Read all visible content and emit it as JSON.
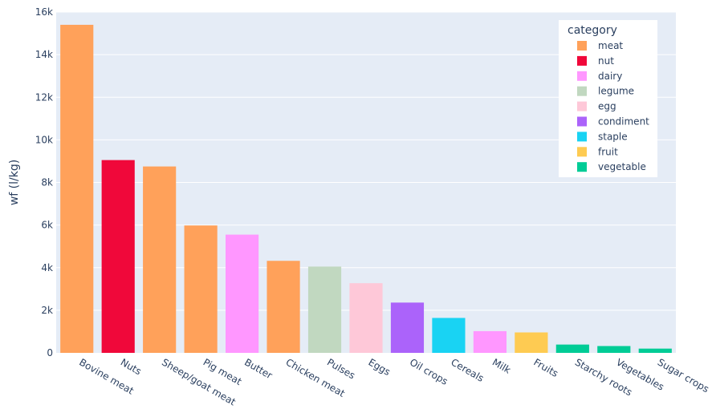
{
  "chart_data": {
    "type": "bar",
    "title": "",
    "xlabel": "",
    "ylabel": "wf (l/kg)",
    "ylim": [
      0,
      16000
    ],
    "ytick_values": [
      0,
      2000,
      4000,
      6000,
      8000,
      10000,
      12000,
      14000,
      16000
    ],
    "ytick_labels": [
      "0",
      "2k",
      "4k",
      "6k",
      "8k",
      "10k",
      "12k",
      "14k",
      "16k"
    ],
    "grid": true,
    "legend": {
      "title": "category",
      "placement": "top-right"
    },
    "categories": [
      "Bovine meat",
      "Nuts",
      "Sheep/goat meat",
      "Pig meat",
      "Butter",
      "Chicken meat",
      "Pulses",
      "Eggs",
      "Oil crops",
      "Cereals",
      "Milk",
      "Fruits",
      "Starchy roots",
      "Vegetables",
      "Sugar crops"
    ],
    "values": [
      15400,
      9050,
      8750,
      5980,
      5550,
      4320,
      4050,
      3270,
      2360,
      1640,
      1020,
      960,
      390,
      320,
      200
    ],
    "bar_category": [
      "meat",
      "nut",
      "meat",
      "meat",
      "dairy",
      "meat",
      "legume",
      "egg",
      "condiment",
      "staple",
      "dairy",
      "fruit",
      "vegetable",
      "vegetable",
      "vegetable"
    ],
    "series": [
      {
        "name": "meat",
        "color": "#ffa15a"
      },
      {
        "name": "nut",
        "color": "#f0083a"
      },
      {
        "name": "dairy",
        "color": "#ff97ff"
      },
      {
        "name": "legume",
        "color": "#c1d8c0"
      },
      {
        "name": "egg",
        "color": "#fec8d8"
      },
      {
        "name": "condiment",
        "color": "#ab63fa"
      },
      {
        "name": "staple",
        "color": "#19d3f3"
      },
      {
        "name": "fruit",
        "color": "#fecb52"
      },
      {
        "name": "vegetable",
        "color": "#00cc96"
      }
    ],
    "colors": {
      "plot_bg": "#e5ecf6",
      "grid": "#ffffff",
      "text": "#2a3f5f"
    }
  }
}
